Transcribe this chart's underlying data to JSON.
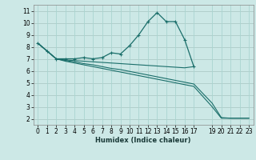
{
  "xlabel": "Humidex (Indice chaleur)",
  "bg_color": "#cce8e6",
  "grid_color": "#aad4d0",
  "line_color": "#1a6e6a",
  "xlim": [
    -0.5,
    23.5
  ],
  "ylim": [
    1.5,
    11.5
  ],
  "xticks": [
    0,
    1,
    2,
    3,
    4,
    5,
    6,
    7,
    8,
    9,
    10,
    11,
    12,
    13,
    14,
    15,
    16,
    17,
    19,
    20,
    21,
    22,
    23
  ],
  "yticks": [
    2,
    3,
    4,
    5,
    6,
    7,
    8,
    9,
    10,
    11
  ],
  "lines": [
    {
      "x": [
        0,
        1,
        2,
        3,
        4,
        5,
        6,
        7,
        8,
        9,
        10,
        11,
        12,
        13,
        14,
        15,
        16,
        17
      ],
      "y": [
        8.3,
        7.65,
        7.0,
        7.0,
        7.0,
        7.1,
        7.0,
        7.1,
        7.5,
        7.4,
        8.1,
        9.0,
        10.1,
        10.85,
        10.1,
        10.1,
        8.6,
        6.35
      ],
      "marker": true
    },
    {
      "x": [
        0,
        1,
        2,
        3,
        4,
        5,
        6,
        7,
        8,
        9,
        10,
        11,
        12,
        13,
        14,
        15,
        16,
        17
      ],
      "y": [
        8.3,
        7.65,
        7.0,
        6.9,
        6.85,
        6.8,
        6.75,
        6.7,
        6.65,
        6.6,
        6.55,
        6.5,
        6.45,
        6.4,
        6.35,
        6.3,
        6.25,
        6.35
      ],
      "marker": false
    },
    {
      "x": [
        0,
        1,
        2,
        3,
        4,
        5,
        6,
        7,
        8,
        9,
        10,
        11,
        12,
        13,
        14,
        15,
        16,
        17,
        19,
        20,
        21,
        22,
        23
      ],
      "y": [
        8.3,
        7.65,
        7.0,
        6.85,
        6.75,
        6.6,
        6.5,
        6.35,
        6.2,
        6.1,
        5.95,
        5.8,
        5.65,
        5.5,
        5.35,
        5.2,
        5.05,
        4.9,
        3.3,
        2.1,
        2.05,
        2.05,
        2.05
      ],
      "marker": false
    },
    {
      "x": [
        0,
        1,
        2,
        3,
        4,
        5,
        6,
        7,
        8,
        9,
        10,
        11,
        12,
        13,
        14,
        15,
        16,
        17,
        19,
        20,
        21,
        22,
        23
      ],
      "y": [
        8.3,
        7.65,
        7.0,
        6.8,
        6.65,
        6.5,
        6.35,
        6.2,
        6.05,
        5.9,
        5.75,
        5.6,
        5.45,
        5.3,
        5.15,
        5.0,
        4.85,
        4.7,
        3.0,
        2.05,
        2.05,
        2.05,
        2.05
      ],
      "marker": false,
      "dashed": true
    }
  ]
}
